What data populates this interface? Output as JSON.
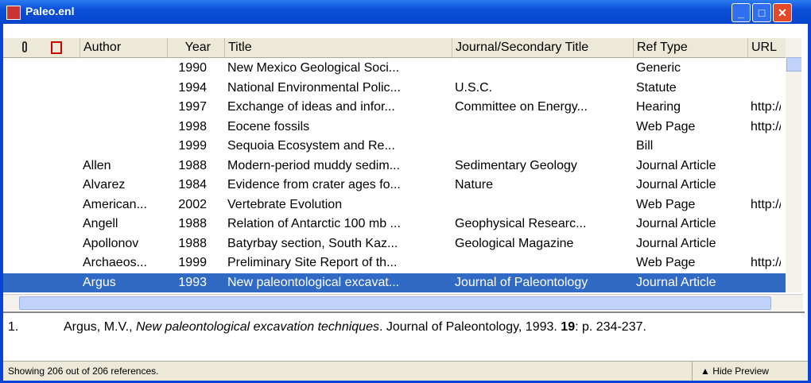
{
  "window": {
    "title": "Paleo.enl"
  },
  "columns": [
    "Author",
    "Year",
    "Title",
    "Journal/Secondary Title",
    "Ref Type",
    "URL"
  ],
  "rows": [
    {
      "year": "1990",
      "title": "New Mexico Geological Soci...",
      "reftype": "Generic"
    },
    {
      "year": "1994",
      "title": "National Environmental Polic...",
      "journal": "U.S.C.",
      "reftype": "Statute"
    },
    {
      "year": "1997",
      "title": "Exchange of ideas and infor...",
      "journal": "Committee on Energy...",
      "reftype": "Hearing",
      "url": "http://"
    },
    {
      "year": "1998",
      "title": "Eocene fossils",
      "reftype": "Web Page",
      "url": "http://"
    },
    {
      "year": "1999",
      "title": "Sequoia Ecosystem and Re...",
      "reftype": "Bill"
    },
    {
      "author": "Allen",
      "year": "1988",
      "title": "Modern-period muddy sedim...",
      "journal": "Sedimentary Geology",
      "reftype": "Journal Article"
    },
    {
      "author": "Alvarez",
      "year": "1984",
      "title": "Evidence from crater ages fo...",
      "journal": "Nature",
      "reftype": "Journal Article"
    },
    {
      "author": "American...",
      "year": "2002",
      "title": "Vertebrate Evolution",
      "reftype": "Web Page",
      "url": "http://"
    },
    {
      "author": "Angell",
      "year": "1988",
      "title": "Relation of Antarctic 100 mb ...",
      "journal": "Geophysical Researc...",
      "reftype": "Journal Article"
    },
    {
      "author": "Apollonov",
      "year": "1988",
      "title": "Batyrbay section, South Kaz...",
      "journal": "Geological Magazine",
      "reftype": "Journal Article"
    },
    {
      "author": "Archaeos...",
      "year": "1999",
      "title": "Preliminary Site Report of th...",
      "reftype": "Web Page",
      "url": "http://"
    },
    {
      "author": "Argus",
      "year": "1993",
      "title": "New paleontological excavat...",
      "journal": "Journal of Paleontology",
      "reftype": "Journal Article",
      "selected": true
    }
  ],
  "preview": {
    "number": "1.",
    "author": "Argus, M.V., ",
    "title": "New paleontological excavation techniques",
    "source": ". Journal of Paleontology, 1993. ",
    "volume": "19",
    "pages": ": p. 234-237."
  },
  "status": {
    "text": "Showing 206 out of 206 references.",
    "button": "Hide Preview"
  }
}
